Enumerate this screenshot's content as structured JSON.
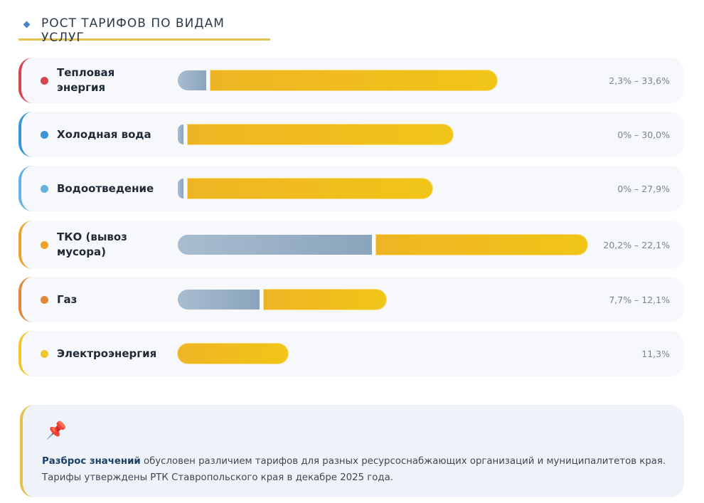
{
  "header": {
    "title": "РОСТ ТАРИФОВ ПО ВИДАМ УСЛУГ",
    "icon": "diamond-icon"
  },
  "rows": [
    {
      "label": "Тепловая энергия",
      "value": "2,3% – 33,6%",
      "color": "#d94452",
      "min": 2.3,
      "max": 33.6
    },
    {
      "label": "Холодная вода",
      "value": "0% – 30,0%",
      "color": "#3a95d4",
      "min": 0,
      "max": 30.0
    },
    {
      "label": "Водоотведение",
      "value": "0% – 27,9%",
      "color": "#66b2e0",
      "min": 0,
      "max": 27.9
    },
    {
      "label": "ТКО (вывоз мусора)",
      "value": "20,2% – 22,1%",
      "color": "#efa22a",
      "min": 20.2,
      "max": 22.1
    },
    {
      "label": "Газ",
      "value": "7,7% – 12,1%",
      "color": "#e0883a",
      "min": 7.7,
      "max": 12.1
    },
    {
      "label": "Электроэнергия",
      "value": "11,3%",
      "color": "#efc72a",
      "min": null,
      "max": 11.3
    }
  ],
  "note": {
    "icon": "pushpin-icon",
    "bold": "Разброс значений",
    "text1": " обусловен различием тарифов для разных ресурсоснабжающих организаций и муниципалитетов края.",
    "text2": "Тарифы утверждены РТК Ставропольского края в декабре 2025 года."
  },
  "chart_data": {
    "type": "bar",
    "title": "РОСТ ТАРИФОВ ПО ВИДАМ УСЛУГ",
    "categories": [
      "Тепловая энергия",
      "Холодная вода",
      "Водоотведение",
      "ТКО (вывоз мусора)",
      "Газ",
      "Электроэнергия"
    ],
    "series": [
      {
        "name": "min",
        "values": [
          2.3,
          0,
          0,
          20.2,
          7.7,
          null
        ]
      },
      {
        "name": "max",
        "values": [
          33.6,
          30.0,
          27.9,
          22.1,
          12.1,
          11.3
        ]
      }
    ],
    "value_labels": [
      "2,3% – 33,6%",
      "0% – 30,0%",
      "0% – 27,9%",
      "20,2% – 22,1%",
      "7,7% – 12,1%",
      "11,3%"
    ],
    "orientation": "horizontal",
    "xlabel": "",
    "ylabel": "",
    "grid": false
  }
}
